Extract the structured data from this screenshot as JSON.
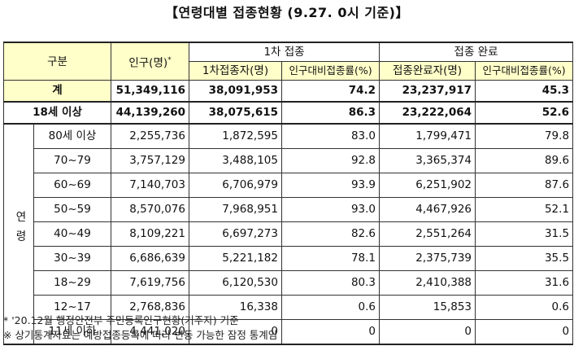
{
  "title": "【연령대별 접종현황 (9.27. 0시 기준)】",
  "headers": {
    "category": "구분",
    "population": "인구(명)",
    "population_mark": "*",
    "first_dose": "1차 접종",
    "completed": "접종 완료",
    "first_count": "1차접종자(명)",
    "first_rate": "인구대비접종률(%)",
    "complete_count": "접종완료자(명)",
    "complete_rate": "인구대비접종률(%)"
  },
  "total": {
    "label": "계",
    "population": "51,349,116",
    "first_count": "38,091,953",
    "first_rate": "74.2",
    "complete_count": "23,237,917",
    "complete_rate": "45.3"
  },
  "adult": {
    "label": "18세 이상",
    "population": "44,139,260",
    "first_count": "38,075,615",
    "first_rate": "86.3",
    "complete_count": "23,222,064",
    "complete_rate": "52.6"
  },
  "age_group_label": "연령",
  "rows": [
    {
      "label": "80세 이상",
      "population": "2,255,736",
      "first_count": "1,872,595",
      "first_rate": "83.0",
      "complete_count": "1,799,471",
      "complete_rate": "79.8"
    },
    {
      "label": "70~79",
      "population": "3,757,129",
      "first_count": "3,488,105",
      "first_rate": "92.8",
      "complete_count": "3,365,374",
      "complete_rate": "89.6"
    },
    {
      "label": "60~69",
      "population": "7,140,703",
      "first_count": "6,706,979",
      "first_rate": "93.9",
      "complete_count": "6,251,902",
      "complete_rate": "87.6"
    },
    {
      "label": "50~59",
      "population": "8,570,076",
      "first_count": "7,968,951",
      "first_rate": "93.0",
      "complete_count": "4,467,926",
      "complete_rate": "52.1"
    },
    {
      "label": "40~49",
      "population": "8,109,221",
      "first_count": "6,697,273",
      "first_rate": "82.6",
      "complete_count": "2,551,264",
      "complete_rate": "31.5"
    },
    {
      "label": "30~39",
      "population": "6,686,639",
      "first_count": "5,221,182",
      "first_rate": "78.1",
      "complete_count": "2,375,739",
      "complete_rate": "35.5"
    },
    {
      "label": "18~29",
      "population": "7,619,756",
      "first_count": "6,120,530",
      "first_rate": "80.3",
      "complete_count": "2,410,388",
      "complete_rate": "31.6"
    },
    {
      "label": "12~17",
      "population": "2,768,836",
      "first_count": "16,338",
      "first_rate": "0.6",
      "complete_count": "15,853",
      "complete_rate": "0.6"
    },
    {
      "label": "11세 이하",
      "population": "4,441,020",
      "first_count": "0",
      "first_rate": "0",
      "complete_count": "0",
      "complete_rate": "0"
    }
  ],
  "footnotes": [
    "* '20.12월 행정안전부 주민등록인구현황(거주자) 기준",
    "※ 상기통계자료는 예방접종등록에 따라 변동 가능한 잠정 통계임"
  ]
}
